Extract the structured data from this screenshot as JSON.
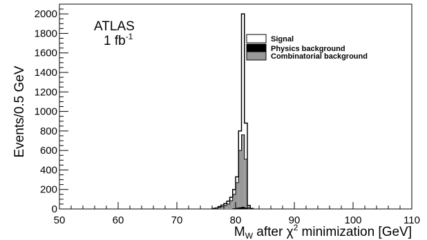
{
  "chart_data": {
    "type": "histogram",
    "xlabel": "M",
    "xlabel_sub": "W",
    "xlabel_rest": " after χ",
    "xlabel_sup": "2",
    "xlabel_tail": " minimization [GeV]",
    "ylabel": "Events/0.5 GeV",
    "xlim": [
      50,
      110
    ],
    "ylim": [
      0,
      2100
    ],
    "xticks": [
      50,
      60,
      70,
      80,
      90,
      100,
      110
    ],
    "yticks": [
      0,
      200,
      400,
      600,
      800,
      1000,
      1200,
      1400,
      1600,
      1800,
      2000
    ],
    "bin_width": 0.5,
    "annotation": {
      "line1": "ATLAS",
      "line2": "1 fb",
      "line2_sup": "-1"
    },
    "legend_position": "top-right",
    "series": [
      {
        "name": "Signal",
        "style": "outline",
        "color": "#000000",
        "bins": [
          [
            76.0,
            5
          ],
          [
            76.5,
            10
          ],
          [
            77.0,
            25
          ],
          [
            77.5,
            40
          ],
          [
            78.0,
            55
          ],
          [
            78.5,
            80
          ],
          [
            79.0,
            120
          ],
          [
            79.5,
            200
          ],
          [
            80.0,
            330
          ],
          [
            80.5,
            800
          ],
          [
            81.0,
            2000
          ],
          [
            81.5,
            880
          ],
          [
            82.0,
            35
          ],
          [
            82.5,
            5
          ]
        ]
      },
      {
        "name": "Physics background",
        "style": "filled",
        "color": "#000000",
        "bins": [
          [
            79.5,
            3
          ],
          [
            80.0,
            8
          ],
          [
            80.5,
            12
          ],
          [
            81.0,
            18
          ],
          [
            81.5,
            10
          ],
          [
            82.0,
            2
          ]
        ]
      },
      {
        "name": "Combinatorial background",
        "style": "filled",
        "color": "#999999",
        "bins": [
          [
            76.0,
            3
          ],
          [
            76.5,
            6
          ],
          [
            77.0,
            14
          ],
          [
            77.5,
            25
          ],
          [
            78.0,
            35
          ],
          [
            78.5,
            50
          ],
          [
            79.0,
            85
          ],
          [
            79.5,
            150
          ],
          [
            80.0,
            270
          ],
          [
            80.5,
            600
          ],
          [
            81.0,
            760
          ],
          [
            81.5,
            510
          ],
          [
            82.0,
            15
          ]
        ]
      }
    ]
  }
}
